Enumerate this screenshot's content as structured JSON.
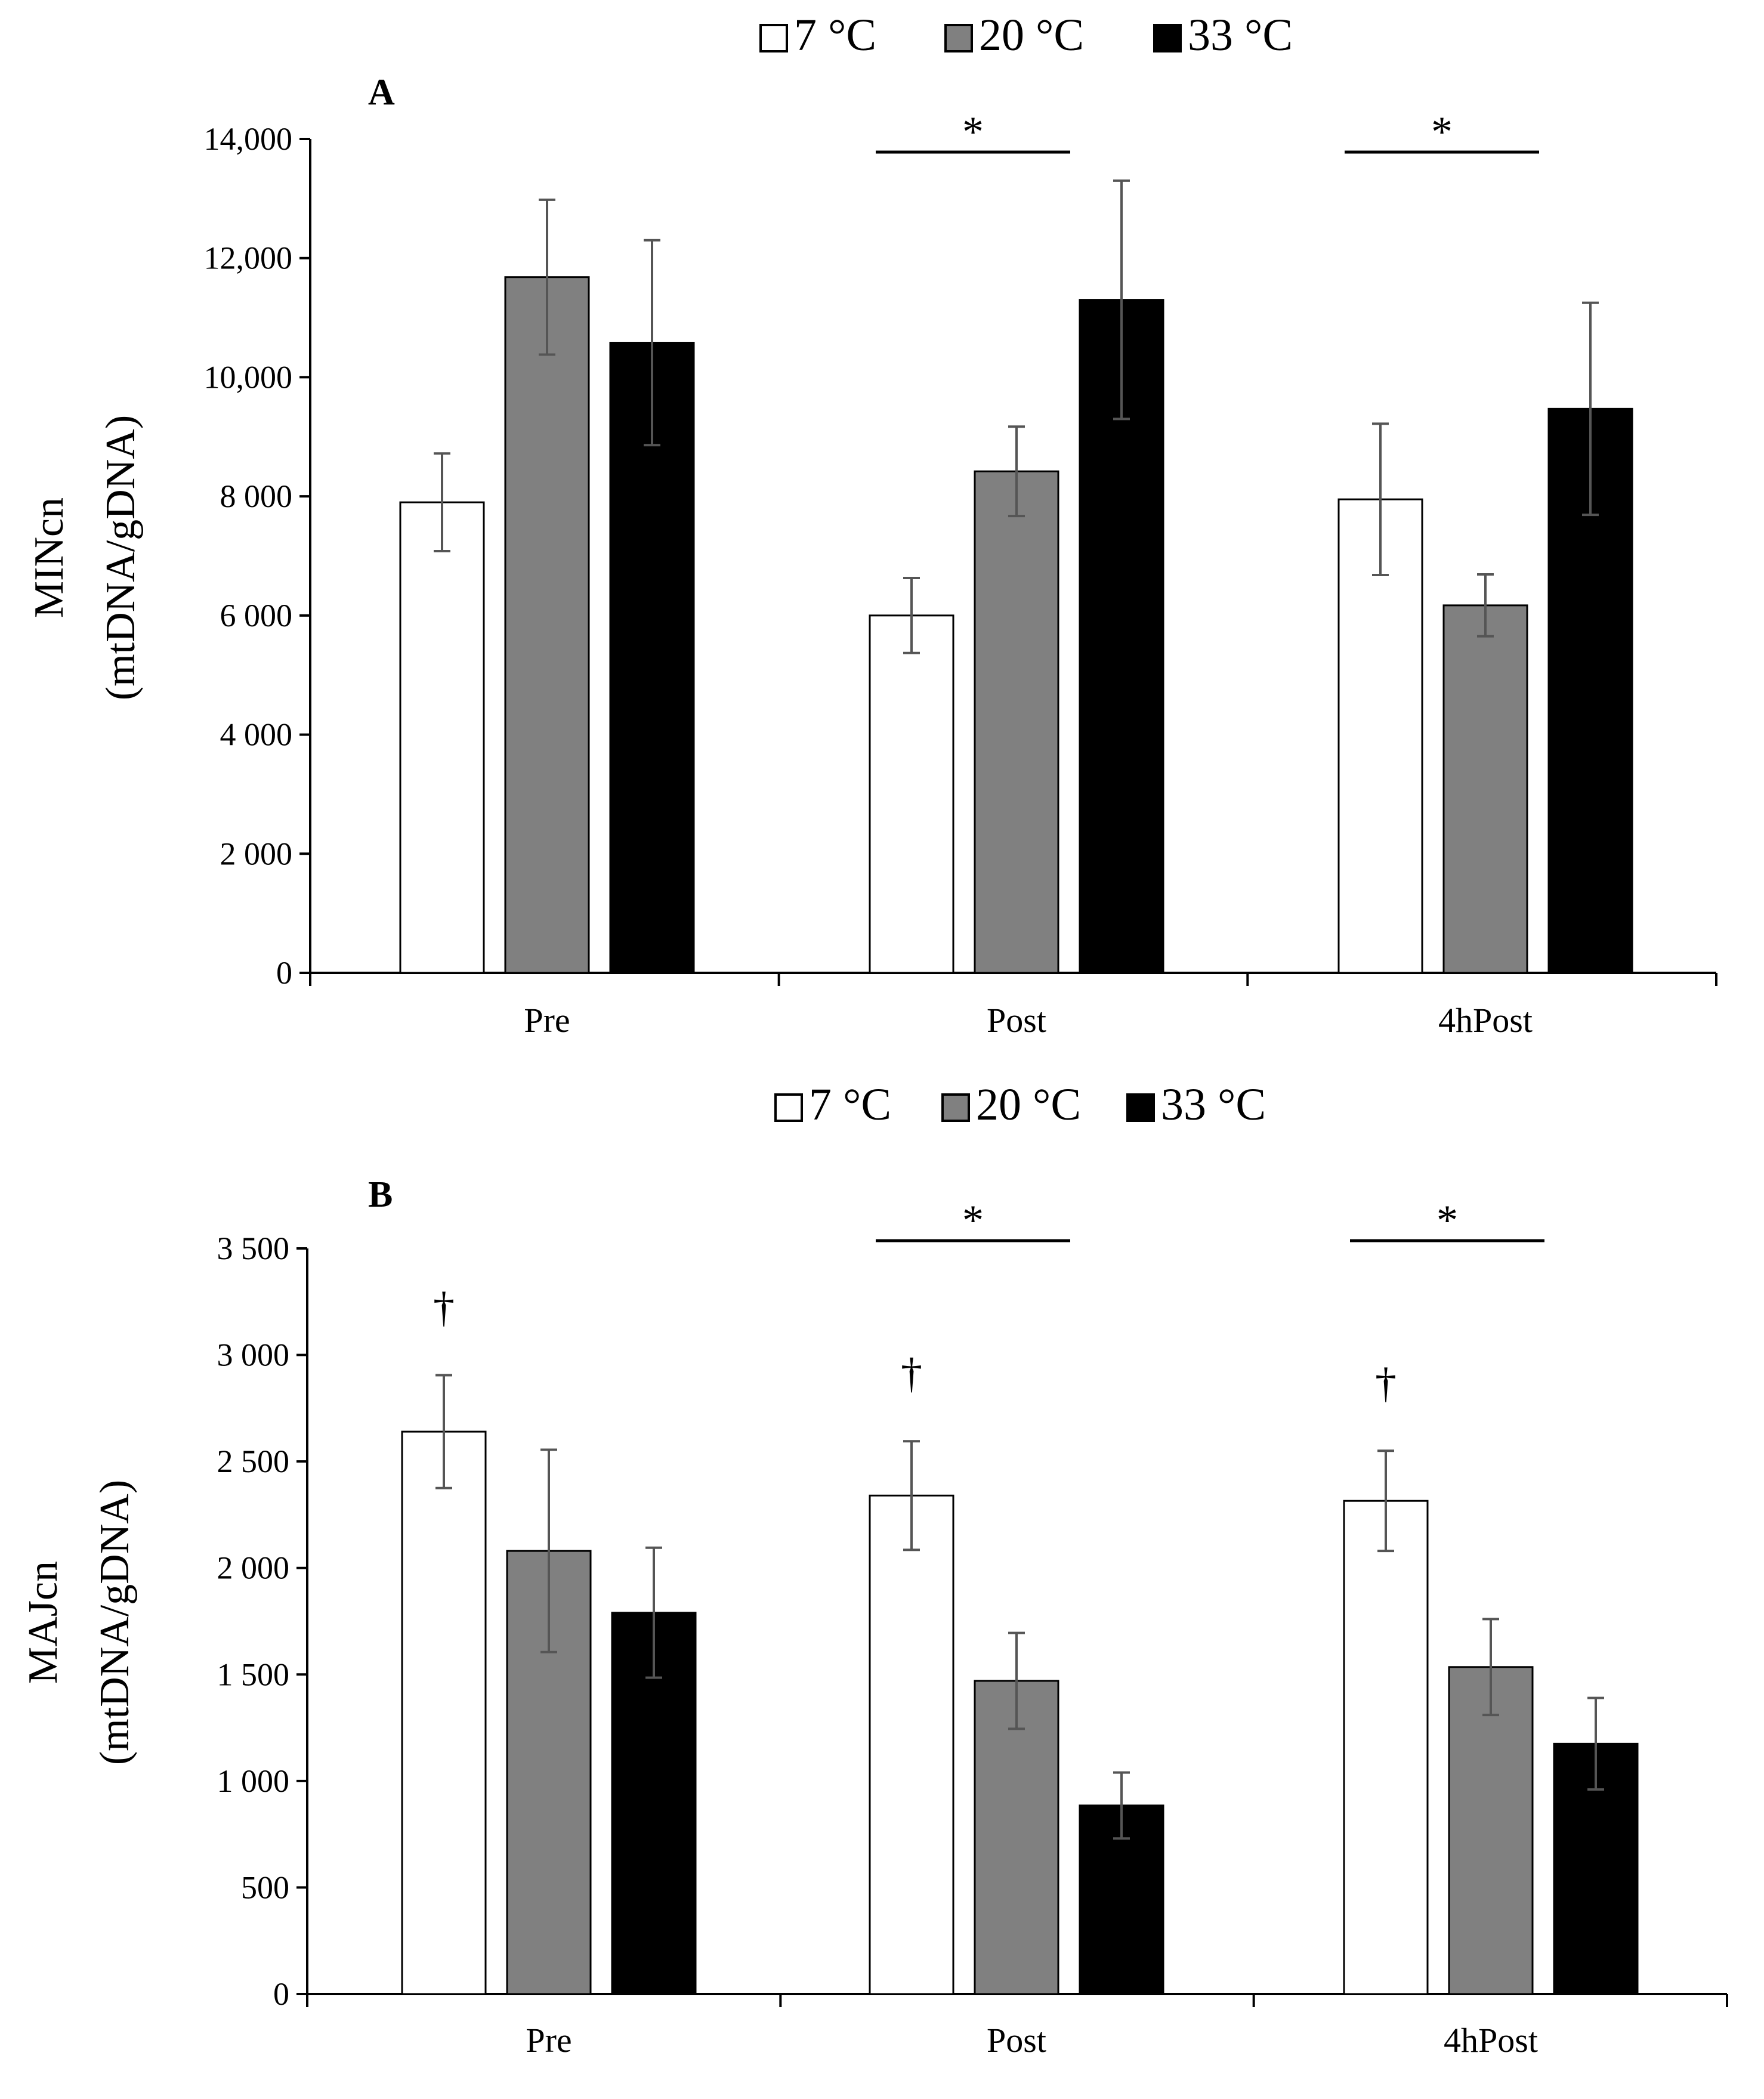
{
  "chart_data": [
    {
      "type": "bar",
      "panel_label": "A",
      "ylabel_line1": "MINcn",
      "ylabel_line2": "(mtDNA/gDNA)",
      "categories": [
        "Pre",
        "Post",
        "4hPost"
      ],
      "ylim": [
        0,
        14000
      ],
      "yticks": [
        0,
        2000,
        4000,
        6000,
        8000,
        10000,
        12000,
        14000
      ],
      "ytick_labels": [
        "0",
        "2 000",
        "4 000",
        "6 000",
        "8 000",
        "10,000",
        "12,000",
        "14,000"
      ],
      "legend": [
        "7 °C",
        "20 °C",
        "33 °C"
      ],
      "series": [
        {
          "name": "7 °C",
          "color": "#ffffff",
          "values": [
            7900,
            6000,
            7950
          ],
          "errors": [
            820,
            630,
            1270
          ]
        },
        {
          "name": "20 °C",
          "color": "#808080",
          "values": [
            11680,
            8420,
            6170
          ],
          "errors": [
            1300,
            750,
            520
          ]
        },
        {
          "name": "33 °C",
          "color": "#000000",
          "values": [
            10580,
            11300,
            9470
          ],
          "errors": [
            1720,
            2000,
            1780
          ]
        }
      ],
      "annotations": [
        {
          "text": "*",
          "category": "Post",
          "span": [
            0,
            1
          ]
        },
        {
          "text": "*",
          "category": "4hPost",
          "span": [
            0,
            1
          ]
        }
      ],
      "daggers": []
    },
    {
      "type": "bar",
      "panel_label": "B",
      "ylabel_line1": "MAJcn",
      "ylabel_line2": "(mtDNA/gDNA)",
      "categories": [
        "Pre",
        "Post",
        "4hPost"
      ],
      "ylim": [
        0,
        3500
      ],
      "yticks": [
        0,
        500,
        1000,
        1500,
        2000,
        2500,
        3000,
        3500
      ],
      "ytick_labels": [
        "0",
        "500",
        "1 000",
        "1 500",
        "2 000",
        "2 500",
        "3 000",
        "3 500"
      ],
      "legend": [
        "7 °C",
        "20 °C",
        "33 °C"
      ],
      "series": [
        {
          "name": "7 °C",
          "color": "#ffffff",
          "values": [
            2640,
            2340,
            2315
          ],
          "errors": [
            265,
            255,
            235
          ]
        },
        {
          "name": "20 °C",
          "color": "#808080",
          "values": [
            2080,
            1470,
            1535
          ],
          "errors": [
            475,
            225,
            225
          ]
        },
        {
          "name": "33 °C",
          "color": "#000000",
          "values": [
            1790,
            885,
            1175
          ],
          "errors": [
            305,
            155,
            215
          ]
        }
      ],
      "annotations": [
        {
          "text": "*",
          "category": "Post",
          "span": [
            0,
            1
          ]
        },
        {
          "text": "*",
          "category": "4hPost",
          "span": [
            0,
            1
          ]
        }
      ],
      "daggers": [
        {
          "text": "†",
          "category": "Pre",
          "series": 0
        },
        {
          "text": "†",
          "category": "Post",
          "series": 0
        },
        {
          "text": "†",
          "category": "4hPost",
          "series": 0
        }
      ]
    }
  ]
}
